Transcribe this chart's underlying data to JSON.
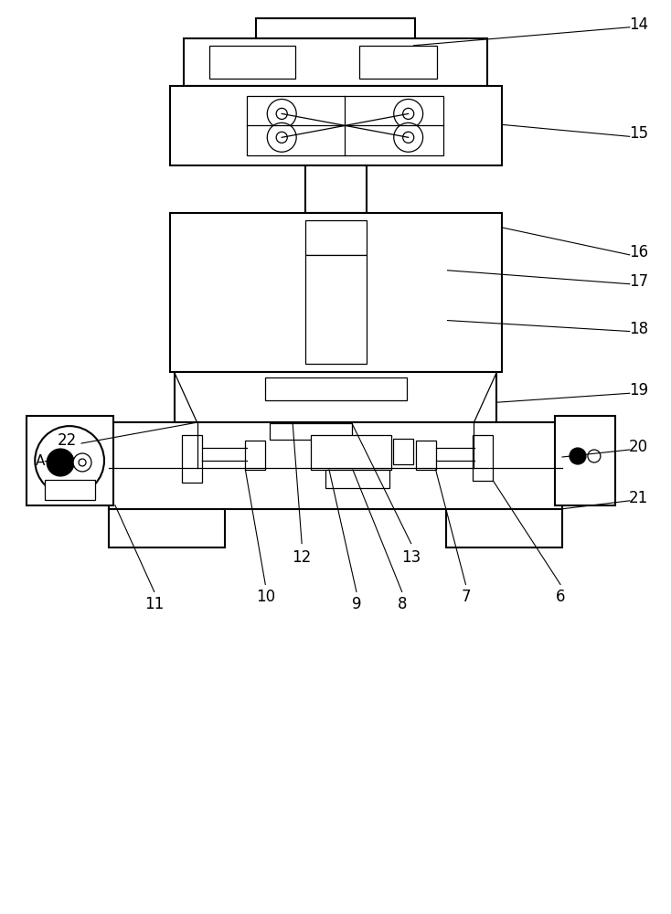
{
  "bg_color": "#ffffff",
  "line_color": "#000000",
  "lw_main": 1.5,
  "lw_thin": 0.9,
  "lw_leader": 0.8,
  "figsize": [
    7.34,
    10.0
  ],
  "dpi": 100
}
